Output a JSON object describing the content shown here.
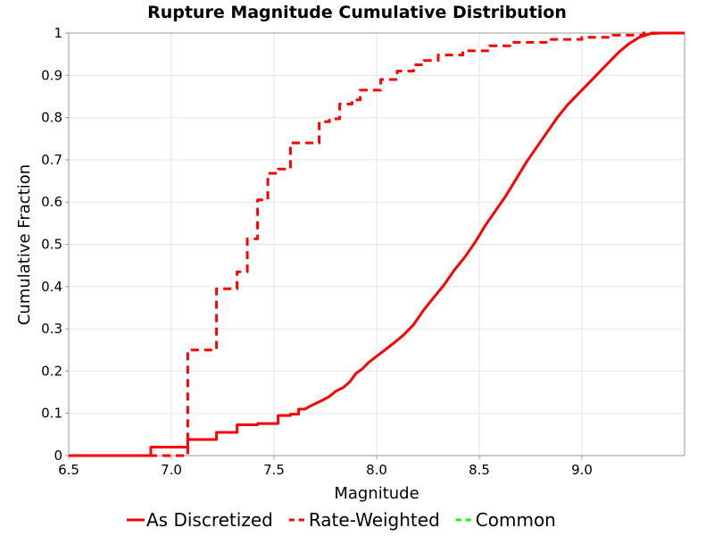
{
  "chart_data": {
    "type": "line",
    "title": "Rupture Magnitude Cumulative Distribution",
    "xlabel": "Magnitude",
    "ylabel": "Cumulative Fraction",
    "xlim": [
      6.5,
      9.5
    ],
    "ylim": [
      0,
      1
    ],
    "x_ticks": [
      "6.5",
      "7.0",
      "7.5",
      "8.0",
      "8.5",
      "9.0"
    ],
    "y_ticks": [
      "0",
      "0.1",
      "0.2",
      "0.3",
      "0.4",
      "0.5",
      "0.6",
      "0.7",
      "0.8",
      "0.9",
      "1"
    ],
    "grid": true,
    "legend_position": "bottom",
    "series": [
      {
        "name": "As Discretized",
        "color": "#ff0000",
        "dash": "solid",
        "points": [
          [
            6.5,
            0.0
          ],
          [
            6.9,
            0.0
          ],
          [
            6.9,
            0.02
          ],
          [
            7.08,
            0.02
          ],
          [
            7.08,
            0.038
          ],
          [
            7.22,
            0.038
          ],
          [
            7.22,
            0.055
          ],
          [
            7.32,
            0.055
          ],
          [
            7.32,
            0.073
          ],
          [
            7.42,
            0.073
          ],
          [
            7.42,
            0.076
          ],
          [
            7.52,
            0.076
          ],
          [
            7.52,
            0.095
          ],
          [
            7.58,
            0.095
          ],
          [
            7.58,
            0.098
          ],
          [
            7.62,
            0.098
          ],
          [
            7.62,
            0.11
          ],
          [
            7.65,
            0.11
          ],
          [
            7.68,
            0.118
          ],
          [
            7.71,
            0.125
          ],
          [
            7.74,
            0.132
          ],
          [
            7.77,
            0.14
          ],
          [
            7.8,
            0.152
          ],
          [
            7.84,
            0.162
          ],
          [
            7.87,
            0.175
          ],
          [
            7.9,
            0.195
          ],
          [
            7.93,
            0.205
          ],
          [
            7.96,
            0.22
          ],
          [
            8.0,
            0.235
          ],
          [
            8.04,
            0.25
          ],
          [
            8.08,
            0.265
          ],
          [
            8.13,
            0.285
          ],
          [
            8.18,
            0.31
          ],
          [
            8.23,
            0.345
          ],
          [
            8.28,
            0.375
          ],
          [
            8.33,
            0.405
          ],
          [
            8.38,
            0.44
          ],
          [
            8.43,
            0.47
          ],
          [
            8.48,
            0.505
          ],
          [
            8.53,
            0.545
          ],
          [
            8.58,
            0.58
          ],
          [
            8.63,
            0.615
          ],
          [
            8.68,
            0.655
          ],
          [
            8.73,
            0.695
          ],
          [
            8.78,
            0.73
          ],
          [
            8.83,
            0.765
          ],
          [
            8.88,
            0.8
          ],
          [
            8.93,
            0.83
          ],
          [
            8.98,
            0.855
          ],
          [
            9.03,
            0.88
          ],
          [
            9.08,
            0.905
          ],
          [
            9.13,
            0.93
          ],
          [
            9.18,
            0.955
          ],
          [
            9.23,
            0.975
          ],
          [
            9.28,
            0.99
          ],
          [
            9.33,
            0.998
          ],
          [
            9.38,
            1.0
          ],
          [
            9.5,
            1.0
          ]
        ]
      },
      {
        "name": "Rate-Weighted",
        "color": "#ff0000",
        "dash": "dashed",
        "points": [
          [
            6.5,
            0.0
          ],
          [
            7.08,
            0.0
          ],
          [
            7.08,
            0.25
          ],
          [
            7.22,
            0.25
          ],
          [
            7.22,
            0.395
          ],
          [
            7.32,
            0.395
          ],
          [
            7.32,
            0.435
          ],
          [
            7.37,
            0.435
          ],
          [
            7.37,
            0.513
          ],
          [
            7.42,
            0.513
          ],
          [
            7.42,
            0.605
          ],
          [
            7.47,
            0.605
          ],
          [
            7.47,
            0.668
          ],
          [
            7.52,
            0.668
          ],
          [
            7.52,
            0.678
          ],
          [
            7.58,
            0.678
          ],
          [
            7.58,
            0.74
          ],
          [
            7.72,
            0.74
          ],
          [
            7.72,
            0.79
          ],
          [
            7.77,
            0.79
          ],
          [
            7.77,
            0.797
          ],
          [
            7.82,
            0.797
          ],
          [
            7.82,
            0.832
          ],
          [
            7.88,
            0.832
          ],
          [
            7.88,
            0.842
          ],
          [
            7.92,
            0.842
          ],
          [
            7.92,
            0.865
          ],
          [
            8.02,
            0.865
          ],
          [
            8.02,
            0.89
          ],
          [
            8.1,
            0.89
          ],
          [
            8.1,
            0.91
          ],
          [
            8.18,
            0.91
          ],
          [
            8.18,
            0.925
          ],
          [
            8.23,
            0.925
          ],
          [
            8.23,
            0.935
          ],
          [
            8.3,
            0.935
          ],
          [
            8.3,
            0.948
          ],
          [
            8.42,
            0.948
          ],
          [
            8.42,
            0.958
          ],
          [
            8.55,
            0.958
          ],
          [
            8.55,
            0.97
          ],
          [
            8.65,
            0.97
          ],
          [
            8.65,
            0.978
          ],
          [
            8.85,
            0.978
          ],
          [
            8.85,
            0.985
          ],
          [
            9.0,
            0.985
          ],
          [
            9.0,
            0.99
          ],
          [
            9.15,
            0.99
          ],
          [
            9.15,
            0.995
          ],
          [
            9.3,
            0.995
          ],
          [
            9.3,
            1.0
          ],
          [
            9.5,
            1.0
          ]
        ]
      },
      {
        "name": "Common",
        "color": "#00ff00",
        "dash": "dashed",
        "points": []
      }
    ]
  }
}
